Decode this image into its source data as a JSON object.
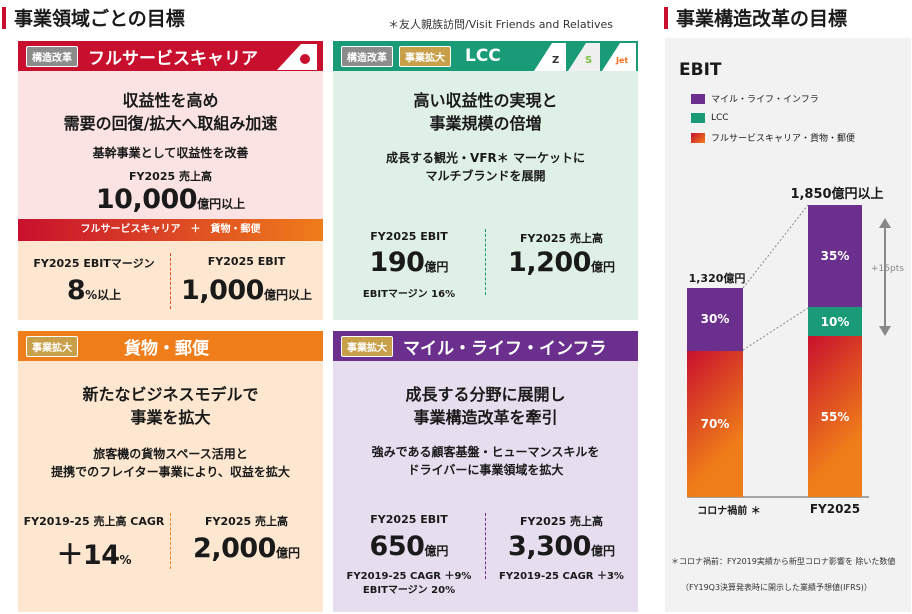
{
  "left_title": "事業領域ごとの目標",
  "right_title": "事業構造改革の目標",
  "note_top": "＊友人親族訪問/Visit Friends and Relatives",
  "fsc": {
    "tag": "構造改革",
    "label": "フルサービスキャリア",
    "headline1": "収益性を高め",
    "headline2": "需要の回復/拡大へ取組み加速",
    "sub": "基幹事業として収益性を改善",
    "revenue_label": "FY2025 売上高",
    "revenue_value": "10,000",
    "revenue_unit": "億円以上",
    "band": "フルサービスキャリア　＋　貨物・郵便",
    "m1_label": "FY2025 EBITマージン",
    "m1_value": "8",
    "m1_unit": "%以上",
    "m2_label": "FY2025 EBIT",
    "m2_value": "1,000",
    "m2_unit": "億円以上"
  },
  "lcc": {
    "tag1": "構造改革",
    "tag2": "事業拡大",
    "label": "LCC",
    "headline1": "高い収益性の実現と",
    "headline2": "事業規模の倍増",
    "sub1": "成長する観光・VFR＊ マーケットに",
    "sub2": "マルチブランドを展開",
    "m1_label": "FY2025 EBIT",
    "m1_value": "190",
    "m1_unit": "億円",
    "m1_note": "EBITマージン 16%",
    "m2_label": "FY2025 売上高",
    "m2_value": "1,200",
    "m2_unit": "億円",
    "logos": [
      "Z",
      "S",
      "Jet"
    ]
  },
  "cargo": {
    "tag": "事業拡大",
    "label": "貨物・郵便",
    "headline1": "新たなビジネスモデルで",
    "headline2": "事業を拡大",
    "sub1": "旅客機の貨物スペース活用と",
    "sub2": "提携でのフレイター事業により、収益を拡大",
    "m1_label": "FY2019-25 売上高 CAGR",
    "m1_value": "＋14",
    "m1_unit": "%",
    "m2_label": "FY2025 売上高",
    "m2_value": "2,000",
    "m2_unit": "億円"
  },
  "mile": {
    "tag": "事業拡大",
    "label": "マイル・ライフ・インフラ",
    "headline1": "成長する分野に展開し",
    "headline2": "事業構造改革を牽引",
    "sub1": "強みである顧客基盤・ヒューマンスキルを",
    "sub2": "ドライバーに事業領域を拡大",
    "m1_label": "FY2025 EBIT",
    "m1_value": "650",
    "m1_unit": "億円",
    "m1_note1": "FY2019-25 CAGR ＋9%",
    "m1_note2": "EBITマージン 20%",
    "m2_label": "FY2025 売上高",
    "m2_value": "3,300",
    "m2_unit": "億円",
    "m2_note": "FY2019-25 CAGR ＋3%"
  },
  "chart_data": {
    "type": "bar",
    "title": "EBIT",
    "categories": [
      "コロナ禍前 ＊",
      "FY2025"
    ],
    "totals": [
      "1,320億円",
      "1,850億円以上"
    ],
    "series": [
      {
        "name": "フルサービスキャリア・貨物・郵便",
        "values": [
          70,
          55
        ],
        "labels": [
          "70%",
          "55%"
        ],
        "color": "#e8501c"
      },
      {
        "name": "LCC",
        "values": [
          0,
          10
        ],
        "labels": [
          "",
          "10%"
        ],
        "color": "#1a9b78"
      },
      {
        "name": "マイル・ライフ・インフラ",
        "values": [
          30,
          35
        ],
        "labels": [
          "30%",
          "35%"
        ],
        "color": "#6b2f8e"
      }
    ],
    "legend": [
      "マイル・ライフ・インフラ",
      "LCC",
      "フルサービスキャリア・貨物・郵便"
    ],
    "annotation": "+15pts",
    "stacked": true
  },
  "footnote1": "＊コロナ禍前：FY2019実績から新型コロナ影響を 除いた数値",
  "footnote2": "（FY19Q3決算発表時に開示した業績予想値(IFRS)）"
}
